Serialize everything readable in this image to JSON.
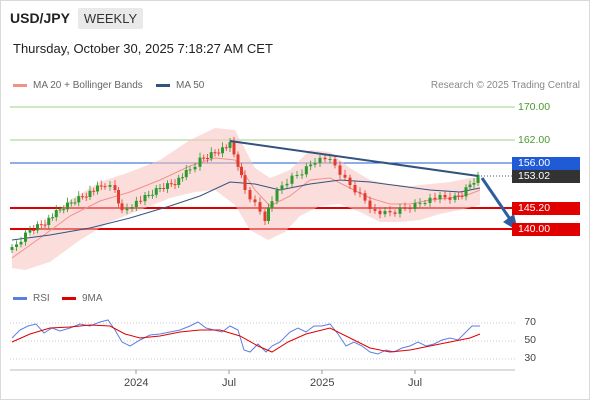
{
  "header": {
    "pair": "USD/JPY",
    "timeframe": "WEEKLY"
  },
  "datetime": "Thursday, October 30, 2025 7:18:27 AM CET",
  "legend": {
    "ma20": {
      "label": "MA 20 + Bollinger Bands",
      "color": "#f4908a"
    },
    "ma50": {
      "label": "MA 50",
      "color": "#34527e"
    }
  },
  "credit": "Research © 2025 Trading Central",
  "price_levels": [
    {
      "value": "170.00",
      "kind": "target",
      "color": "#7cbd5e"
    },
    {
      "value": "162.00",
      "kind": "target",
      "color": "#7cbd5e"
    },
    {
      "value": "156.00",
      "kind": "pivot",
      "color": "#1f5bd6"
    },
    {
      "value": "153.02",
      "kind": "last",
      "color": "#333333"
    },
    {
      "value": "145.20",
      "kind": "support",
      "color": "#e00000"
    },
    {
      "value": "140.00",
      "kind": "support",
      "color": "#e00000"
    }
  ],
  "rsi_legend": {
    "rsi": {
      "label": "RSI",
      "color": "#5b7fe0"
    },
    "ma9": {
      "label": "9MA",
      "color": "#e00000"
    }
  },
  "rsi_ticks": [
    "70",
    "50",
    "30"
  ],
  "x_axis": [
    "2024",
    "Jul",
    "2025",
    "Jul"
  ],
  "colors": {
    "up": "#2c9a2c",
    "down": "#e33b2f",
    "band": "#f8c3bf",
    "arrow": "#2d5da0"
  }
}
